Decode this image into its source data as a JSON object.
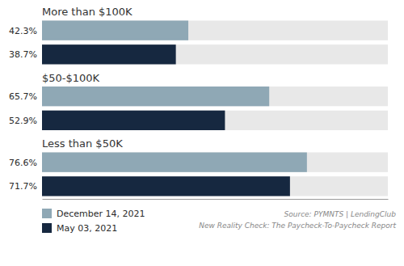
{
  "chart_data": {
    "type": "bar",
    "orientation": "horizontal",
    "categories": [
      "More than $100K",
      "$50-$100K",
      "Less than $50K"
    ],
    "series": [
      {
        "name": "December 14, 2021",
        "color": "#8fa8b5",
        "values": [
          42.3,
          65.7,
          76.6
        ],
        "value_labels": [
          "42.3%",
          "65.7%",
          "76.6%"
        ]
      },
      {
        "name": "May 03, 2021",
        "color": "#162840",
        "values": [
          38.7,
          52.9,
          71.7
        ],
        "value_labels": [
          "38.7%",
          "52.9%",
          "71.7%"
        ]
      }
    ],
    "xlim": [
      0,
      100
    ],
    "data_labels": true,
    "tick_labels": false,
    "legend": "bottom",
    "annotations": [
      "Source: PYMNTS  |  LendingClub",
      "New Reality Check: The Paycheck-To-Paycheck Report"
    ]
  }
}
